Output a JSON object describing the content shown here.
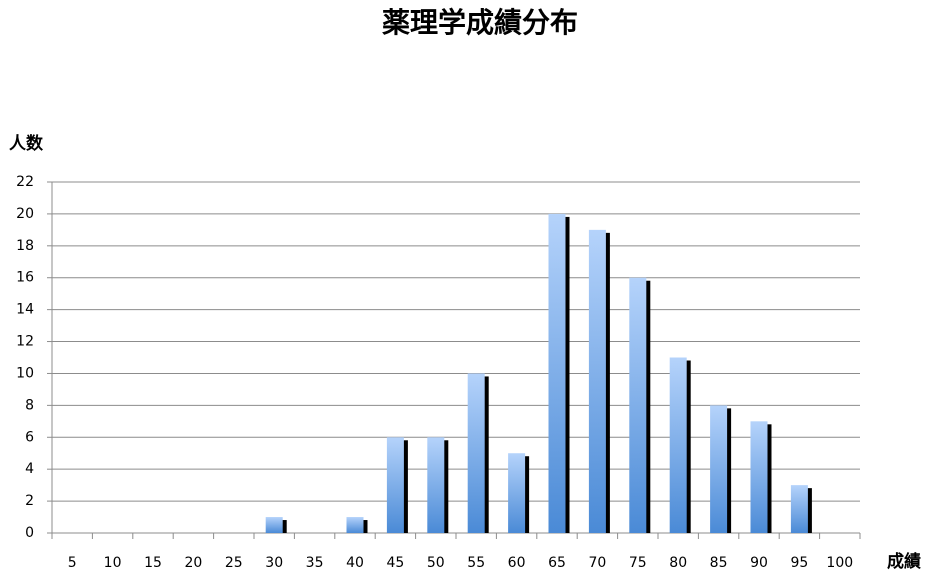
{
  "chart_data": {
    "type": "bar",
    "title": "薬理学成績分布",
    "y_label": "人数",
    "x_label": "成績",
    "categories": [
      "5",
      "10",
      "15",
      "20",
      "25",
      "30",
      "35",
      "40",
      "45",
      "50",
      "55",
      "60",
      "65",
      "70",
      "75",
      "80",
      "85",
      "90",
      "95",
      "100"
    ],
    "values": [
      0,
      0,
      0,
      0,
      0,
      1,
      0,
      1,
      6,
      6,
      10,
      5,
      20,
      19,
      16,
      11,
      8,
      7,
      3,
      0
    ],
    "color": "#5b9bd5",
    "ylim": [
      0,
      22
    ],
    "yticks": [
      0,
      2,
      4,
      6,
      8,
      10,
      12,
      14,
      16,
      18,
      20,
      22
    ],
    "grid": true
  }
}
